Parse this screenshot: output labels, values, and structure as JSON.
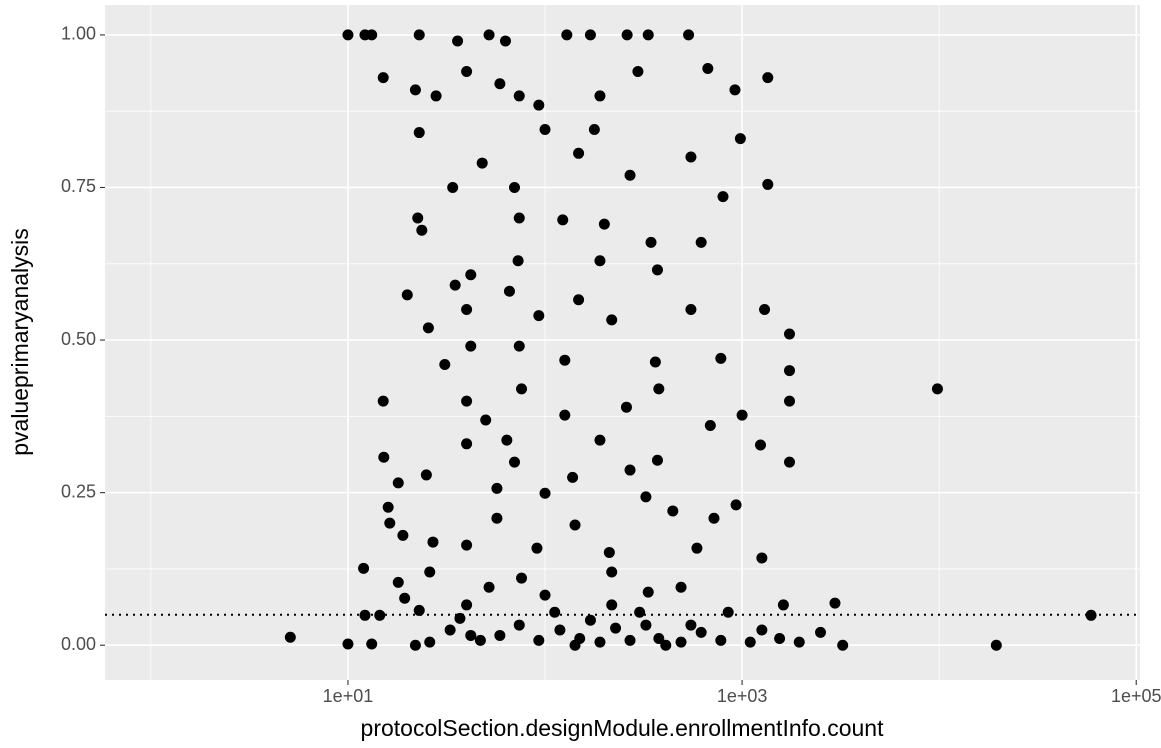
{
  "chart_data": {
    "type": "scatter",
    "x_label": "protocolSection.designModule.enrollmentInfo.count",
    "y_label": "pvalueprimaryanalysis",
    "x_log": true,
    "xlim": [
      0.585,
      104500
    ],
    "ylim": [
      -0.057,
      1.049
    ],
    "xticks": [
      {
        "value": 10,
        "label": "1e+01"
      },
      {
        "value": 1000,
        "label": "1e+03"
      },
      {
        "value": 100000,
        "label": "1e+05"
      }
    ],
    "x_minor_grid": [
      1,
      100,
      10000
    ],
    "yticks": [
      {
        "value": 0,
        "label": "0.00"
      },
      {
        "value": 0.25,
        "label": "0.25"
      },
      {
        "value": 0.5,
        "label": "0.50"
      },
      {
        "value": 0.75,
        "label": "0.75"
      },
      {
        "value": 1,
        "label": "1.00"
      }
    ],
    "y_minor_grid": [
      0.125,
      0.375,
      0.625,
      0.875
    ],
    "hline": 0.05,
    "grid": true,
    "color": "#000000",
    "x": [
      10,
      12.2,
      13.2,
      23,
      36,
      52,
      63,
      129,
      170,
      261,
      334,
      535,
      15.1,
      22,
      28,
      40,
      59,
      74,
      93,
      190,
      296,
      670,
      920,
      1350,
      23,
      100,
      178,
      980,
      550,
      148,
      270,
      48,
      70,
      34,
      1350,
      800,
      22.6,
      74,
      200,
      620,
      23.7,
      123,
      345,
      73,
      190,
      35,
      20,
      42,
      66,
      148,
      372,
      1300,
      1740,
      25.6,
      40,
      93,
      218,
      550,
      31,
      42,
      74,
      126,
      363,
      780,
      1740,
      9800,
      15.1,
      40,
      76,
      259,
      378,
      1740,
      1000,
      50,
      126,
      690,
      64,
      190,
      40,
      1240,
      15.2,
      25,
      70,
      138,
      270,
      372,
      1740,
      18,
      57,
      100,
      325,
      932,
      16,
      16.3,
      57,
      142,
      445,
      720,
      19,
      27,
      40,
      91,
      212,
      590,
      1260,
      12,
      26,
      76,
      218,
      490,
      18,
      52,
      19.4,
      100,
      334,
      14.5,
      12.2,
      23,
      40,
      218,
      850,
      1620,
      2960,
      59000,
      5.1,
      10,
      13.2,
      22,
      3240,
      19500,
      33,
      47,
      59,
      74,
      93,
      119,
      150,
      170,
      190,
      228,
      270,
      325,
      378,
      490,
      620,
      780,
      1100,
      1550,
      1950,
      2500,
      37,
      112,
      302,
      550,
      1260,
      26,
      42,
      142,
      410
    ],
    "values": [
      1,
      1,
      1,
      1,
      0.99,
      1,
      0.99,
      1,
      1,
      1,
      1,
      1,
      0.93,
      0.91,
      0.9,
      0.94,
      0.92,
      0.9,
      0.885,
      0.9,
      0.94,
      0.945,
      0.91,
      0.93,
      0.84,
      0.845,
      0.845,
      0.83,
      0.8,
      0.806,
      0.77,
      0.79,
      0.75,
      0.75,
      0.755,
      0.735,
      0.7,
      0.7,
      0.69,
      0.66,
      0.68,
      0.697,
      0.66,
      0.63,
      0.63,
      0.59,
      0.574,
      0.607,
      0.58,
      0.566,
      0.615,
      0.55,
      0.51,
      0.52,
      0.55,
      0.54,
      0.533,
      0.55,
      0.46,
      0.49,
      0.49,
      0.467,
      0.464,
      0.47,
      0.45,
      0.42,
      0.4,
      0.4,
      0.42,
      0.39,
      0.42,
      0.4,
      0.377,
      0.369,
      0.377,
      0.36,
      0.336,
      0.336,
      0.33,
      0.328,
      0.308,
      0.279,
      0.3,
      0.275,
      0.287,
      0.303,
      0.3,
      0.266,
      0.257,
      0.249,
      0.243,
      0.23,
      0.226,
      0.2,
      0.208,
      0.197,
      0.22,
      0.208,
      0.18,
      0.169,
      0.164,
      0.159,
      0.152,
      0.159,
      0.143,
      0.126,
      0.12,
      0.11,
      0.12,
      0.095,
      0.103,
      0.095,
      0.077,
      0.082,
      0.087,
      0.049,
      0.049,
      0.057,
      0.066,
      0.066,
      0.054,
      0.066,
      0.069,
      0.049,
      0.013,
      0.002,
      0.002,
      0,
      0,
      0,
      0.025,
      0.008,
      0.016,
      0.033,
      0.008,
      0.025,
      0.011,
      0.041,
      0.005,
      0.028,
      0.008,
      0.033,
      0.011,
      0.005,
      0.021,
      0.008,
      0.005,
      0.011,
      0.005,
      0.021,
      0.044,
      0.054,
      0.054,
      0.033,
      0.025,
      0.005,
      0.016,
      0,
      0
    ]
  }
}
